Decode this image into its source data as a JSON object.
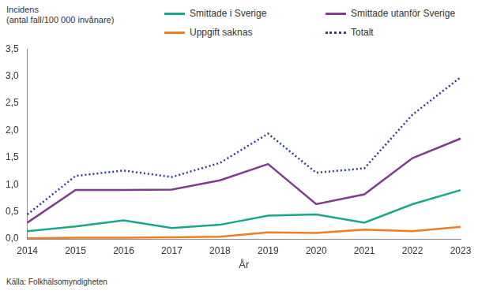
{
  "chart_data": {
    "type": "line",
    "y_label": "Incidens\n(antal fall/100 000 invånare)",
    "x_label": "År",
    "source": "Källa: Folkhälsomyndigheten",
    "categories": [
      "2014",
      "2015",
      "2016",
      "2017",
      "2018",
      "2019",
      "2020",
      "2021",
      "2022",
      "2023"
    ],
    "series": [
      {
        "name": "Smittade i Sverige",
        "color": "#1ba589",
        "line_style": "solid",
        "values": [
          0.14,
          0.23,
          0.34,
          0.2,
          0.26,
          0.43,
          0.45,
          0.3,
          0.64,
          0.9
        ]
      },
      {
        "name": "Smittade utanför Sverige",
        "color": "#7d3c8c",
        "line_style": "solid",
        "values": [
          0.3,
          0.9,
          0.9,
          0.91,
          1.08,
          1.38,
          0.64,
          0.82,
          1.49,
          1.85
        ]
      },
      {
        "name": "Uppgift saknas",
        "color": "#f07d23",
        "line_style": "solid",
        "values": [
          0.01,
          0.02,
          0.02,
          0.03,
          0.04,
          0.12,
          0.11,
          0.17,
          0.14,
          0.22
        ]
      },
      {
        "name": "Totalt",
        "color": "#2e3f8f",
        "line_style": "dotted",
        "values": [
          0.45,
          1.16,
          1.26,
          1.14,
          1.4,
          1.94,
          1.22,
          1.3,
          2.29,
          2.98
        ]
      }
    ],
    "ylim": [
      0,
      3.5
    ],
    "yticks": [
      {
        "value": 0,
        "label": "0,0"
      },
      {
        "value": 0.5,
        "label": "0,5"
      },
      {
        "value": 1,
        "label": "1,0"
      },
      {
        "value": 1.5,
        "label": "1,5"
      },
      {
        "value": 2,
        "label": "2,0"
      },
      {
        "value": 2.5,
        "label": "2,5"
      },
      {
        "value": 3,
        "label": "3,0"
      },
      {
        "value": 3.5,
        "label": "3,5"
      }
    ],
    "grid": false,
    "legend": "top"
  }
}
